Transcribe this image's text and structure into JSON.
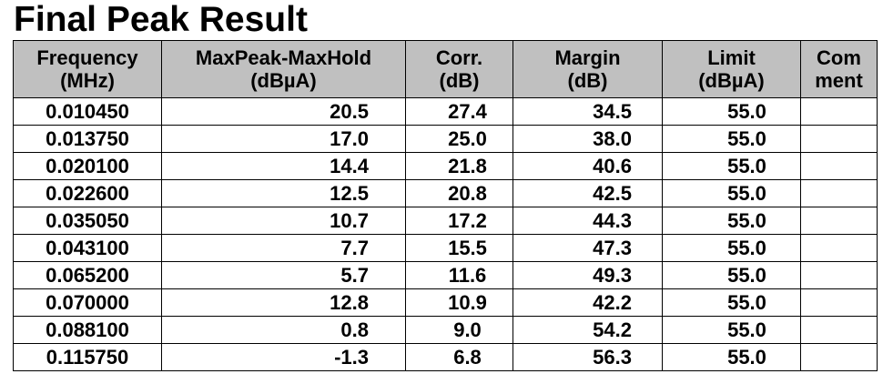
{
  "title": "Final Peak Result",
  "table": {
    "headers": [
      {
        "line1": "Frequency",
        "line2": "(MHz)"
      },
      {
        "line1": "MaxPeak-MaxHold",
        "line2": "(dBµA)"
      },
      {
        "line1": "Corr.",
        "line2": "(dB)"
      },
      {
        "line1": "Margin",
        "line2": "(dB)"
      },
      {
        "line1": "Limit",
        "line2": "(dBµA)"
      },
      {
        "line1": "Com",
        "line2": "ment"
      }
    ],
    "rows": [
      {
        "frequency": "0.010450",
        "maxpeak": "20.5",
        "corr": "27.4",
        "margin": "34.5",
        "limit": "55.0",
        "comment": ""
      },
      {
        "frequency": "0.013750",
        "maxpeak": "17.0",
        "corr": "25.0",
        "margin": "38.0",
        "limit": "55.0",
        "comment": ""
      },
      {
        "frequency": "0.020100",
        "maxpeak": "14.4",
        "corr": "21.8",
        "margin": "40.6",
        "limit": "55.0",
        "comment": ""
      },
      {
        "frequency": "0.022600",
        "maxpeak": "12.5",
        "corr": "20.8",
        "margin": "42.5",
        "limit": "55.0",
        "comment": ""
      },
      {
        "frequency": "0.035050",
        "maxpeak": "10.7",
        "corr": "17.2",
        "margin": "44.3",
        "limit": "55.0",
        "comment": ""
      },
      {
        "frequency": "0.043100",
        "maxpeak": "7.7",
        "corr": "15.5",
        "margin": "47.3",
        "limit": "55.0",
        "comment": ""
      },
      {
        "frequency": "0.065200",
        "maxpeak": "5.7",
        "corr": "11.6",
        "margin": "49.3",
        "limit": "55.0",
        "comment": ""
      },
      {
        "frequency": "0.070000",
        "maxpeak": "12.8",
        "corr": "10.9",
        "margin": "42.2",
        "limit": "55.0",
        "comment": ""
      },
      {
        "frequency": "0.088100",
        "maxpeak": "0.8",
        "corr": "9.0",
        "margin": "54.2",
        "limit": "55.0",
        "comment": ""
      },
      {
        "frequency": "0.115750",
        "maxpeak": "-1.3",
        "corr": "6.8",
        "margin": "56.3",
        "limit": "55.0",
        "comment": ""
      }
    ]
  },
  "colors": {
    "header_background": "#c0c0c0",
    "border": "#000000",
    "text": "#000000"
  }
}
